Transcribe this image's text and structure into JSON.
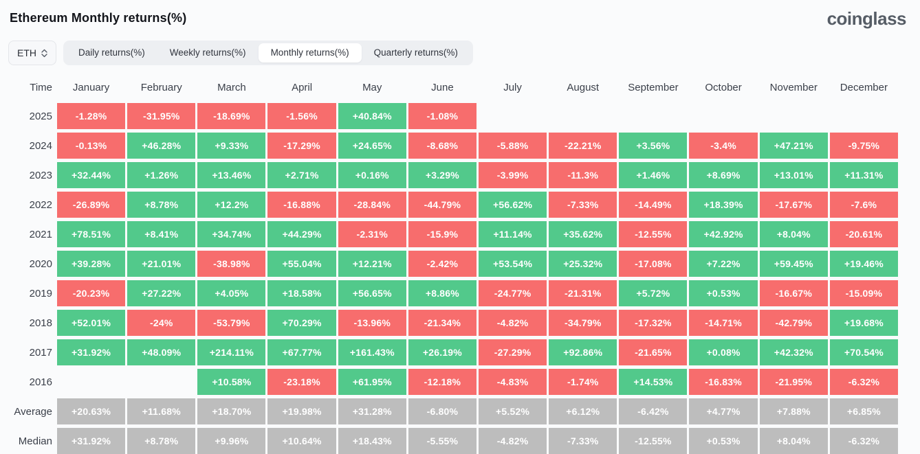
{
  "header": {
    "title": "Ethereum Monthly returns(%)",
    "logo": "coinglass"
  },
  "controls": {
    "symbol_select": {
      "value": "ETH",
      "icon": "updown-chevrons-icon"
    },
    "tabs": [
      {
        "label": "Daily returns(%)",
        "active": false
      },
      {
        "label": "Weekly returns(%)",
        "active": false
      },
      {
        "label": "Monthly returns(%)",
        "active": true
      },
      {
        "label": "Quarterly returns(%)",
        "active": false
      }
    ]
  },
  "colors": {
    "positive": "#52c98b",
    "negative": "#f76d6d",
    "neutral": "#bdbdbd",
    "page_background": "#fafbfc"
  },
  "chart_data": {
    "type": "table",
    "title": "Ethereum Monthly returns(%)",
    "columns": [
      "Time",
      "January",
      "February",
      "March",
      "April",
      "May",
      "June",
      "July",
      "August",
      "September",
      "October",
      "November",
      "December"
    ],
    "rows": [
      {
        "label": "2025",
        "style": "signed",
        "values": [
          "-1.28%",
          "-31.95%",
          "-18.69%",
          "-1.56%",
          "+40.84%",
          "-1.08%",
          "",
          "",
          "",
          "",
          "",
          ""
        ]
      },
      {
        "label": "2024",
        "style": "signed",
        "values": [
          "-0.13%",
          "+46.28%",
          "+9.33%",
          "-17.29%",
          "+24.65%",
          "-8.68%",
          "-5.88%",
          "-22.21%",
          "+3.56%",
          "-3.4%",
          "+47.21%",
          "-9.75%"
        ]
      },
      {
        "label": "2023",
        "style": "signed",
        "values": [
          "+32.44%",
          "+1.26%",
          "+13.46%",
          "+2.71%",
          "+0.16%",
          "+3.29%",
          "-3.99%",
          "-11.3%",
          "+1.46%",
          "+8.69%",
          "+13.01%",
          "+11.31%"
        ]
      },
      {
        "label": "2022",
        "style": "signed",
        "values": [
          "-26.89%",
          "+8.78%",
          "+12.2%",
          "-16.88%",
          "-28.84%",
          "-44.79%",
          "+56.62%",
          "-7.33%",
          "-14.49%",
          "+18.39%",
          "-17.67%",
          "-7.6%"
        ]
      },
      {
        "label": "2021",
        "style": "signed",
        "values": [
          "+78.51%",
          "+8.41%",
          "+34.74%",
          "+44.29%",
          "-2.31%",
          "-15.9%",
          "+11.14%",
          "+35.62%",
          "-12.55%",
          "+42.92%",
          "+8.04%",
          "-20.61%"
        ]
      },
      {
        "label": "2020",
        "style": "signed",
        "values": [
          "+39.28%",
          "+21.01%",
          "-38.98%",
          "+55.04%",
          "+12.21%",
          "-2.42%",
          "+53.54%",
          "+25.32%",
          "-17.08%",
          "+7.22%",
          "+59.45%",
          "+19.46%"
        ]
      },
      {
        "label": "2019",
        "style": "signed",
        "values": [
          "-20.23%",
          "+27.22%",
          "+4.05%",
          "+18.58%",
          "+56.65%",
          "+8.86%",
          "-24.77%",
          "-21.31%",
          "+5.72%",
          "+0.53%",
          "-16.67%",
          "-15.09%"
        ]
      },
      {
        "label": "2018",
        "style": "signed",
        "values": [
          "+52.01%",
          "-24%",
          "-53.79%",
          "+70.29%",
          "-13.96%",
          "-21.34%",
          "-4.82%",
          "-34.79%",
          "-17.32%",
          "-14.71%",
          "-42.79%",
          "+19.68%"
        ]
      },
      {
        "label": "2017",
        "style": "signed",
        "values": [
          "+31.92%",
          "+48.09%",
          "+214.11%",
          "+67.77%",
          "+161.43%",
          "+26.19%",
          "-27.29%",
          "+92.86%",
          "-21.65%",
          "+0.08%",
          "+42.32%",
          "+70.54%"
        ]
      },
      {
        "label": "2016",
        "style": "signed",
        "values": [
          "",
          "",
          "+10.58%",
          "-23.18%",
          "+61.95%",
          "-12.18%",
          "-4.83%",
          "-1.74%",
          "+14.53%",
          "-16.83%",
          "-21.95%",
          "-6.32%"
        ]
      },
      {
        "label": "Average",
        "style": "neutral",
        "values": [
          "+20.63%",
          "+11.68%",
          "+18.70%",
          "+19.98%",
          "+31.28%",
          "-6.80%",
          "+5.52%",
          "+6.12%",
          "-6.42%",
          "+4.77%",
          "+7.88%",
          "+6.85%"
        ]
      },
      {
        "label": "Median",
        "style": "neutral",
        "values": [
          "+31.92%",
          "+8.78%",
          "+9.96%",
          "+10.64%",
          "+18.43%",
          "-5.55%",
          "-4.82%",
          "-7.33%",
          "-12.55%",
          "+0.53%",
          "+8.04%",
          "-6.32%"
        ]
      }
    ]
  }
}
